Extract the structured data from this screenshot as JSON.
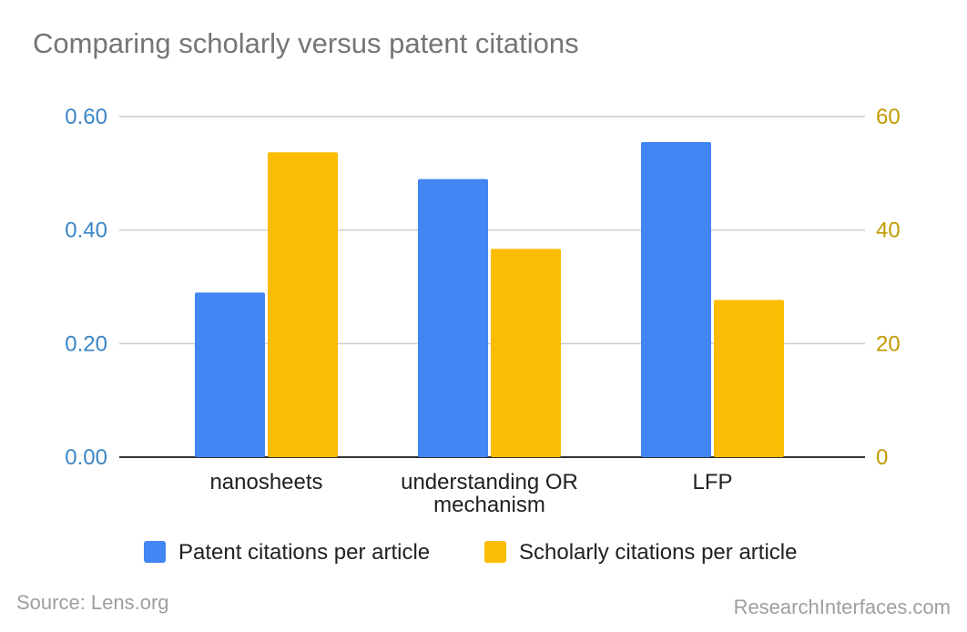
{
  "chart_data": {
    "type": "bar",
    "title": "Comparing scholarly versus patent citations",
    "categories": [
      "nanosheets",
      "understanding OR\nmechanism",
      "LFP"
    ],
    "series": [
      {
        "name": "Patent citations per article",
        "axis": "left",
        "color": "#4285f4",
        "values": [
          0.29,
          0.49,
          0.555
        ]
      },
      {
        "name": "Scholarly citations per article",
        "axis": "right",
        "color": "#fbbc04",
        "values": [
          53.7,
          36.7,
          27.7
        ]
      }
    ],
    "y_left": {
      "min": 0,
      "max": 0.6,
      "ticks": [
        "0.00",
        "0.20",
        "0.40",
        "0.60"
      ],
      "color": "#3b86c6"
    },
    "y_right": {
      "min": 0,
      "max": 60,
      "ticks": [
        "0",
        "20",
        "40",
        "60"
      ],
      "color": "#c29a00"
    },
    "grid": true,
    "legend_position": "bottom"
  },
  "footer": {
    "source": "Source: Lens.org",
    "credit": "ResearchInterfaces.com"
  }
}
